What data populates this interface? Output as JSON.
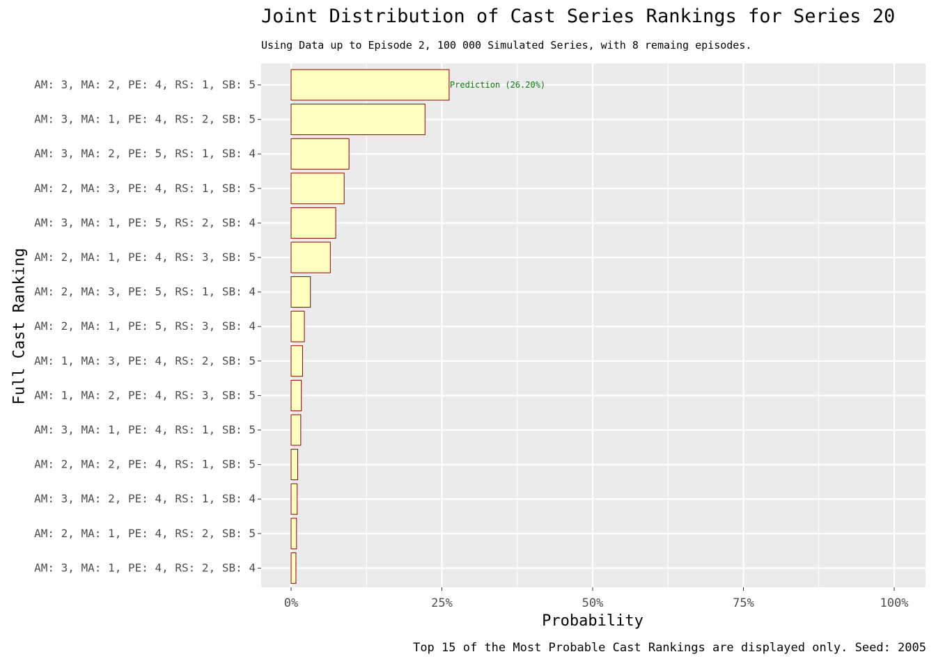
{
  "chart_data": {
    "type": "bar",
    "orientation": "horizontal",
    "title": "Joint Distribution of Cast Series Rankings for Series 20",
    "subtitle": "Using Data up to Episode 2, 100 000 Simulated Series, with 8 remaing episodes.",
    "xlabel": "Probability",
    "ylabel": "Full Cast Ranking",
    "caption": "Top 15 of the Most Probable Cast Rankings are displayed only. Seed: 2005",
    "xlim": [
      0,
      1
    ],
    "x_ticks": [
      0,
      0.25,
      0.5,
      0.75,
      1
    ],
    "x_tick_labels": [
      "0%",
      "25%",
      "50%",
      "75%",
      "100%"
    ],
    "grid": true,
    "categories": [
      "AM: 3, MA: 2, PE: 4, RS: 1, SB: 5",
      "AM: 3, MA: 1, PE: 4, RS: 2, SB: 5",
      "AM: 3, MA: 2, PE: 5, RS: 1, SB: 4",
      "AM: 2, MA: 3, PE: 4, RS: 1, SB: 5",
      "AM: 3, MA: 1, PE: 5, RS: 2, SB: 4",
      "AM: 2, MA: 1, PE: 4, RS: 3, SB: 5",
      "AM: 2, MA: 3, PE: 5, RS: 1, SB: 4",
      "AM: 2, MA: 1, PE: 5, RS: 3, SB: 4",
      "AM: 1, MA: 3, PE: 4, RS: 2, SB: 5",
      "AM: 1, MA: 2, PE: 4, RS: 3, SB: 5",
      "AM: 3, MA: 1, PE: 4, RS: 1, SB: 5",
      "AM: 2, MA: 2, PE: 4, RS: 1, SB: 5",
      "AM: 3, MA: 2, PE: 4, RS: 1, SB: 4",
      "AM: 2, MA: 1, PE: 4, RS: 2, SB: 5",
      "AM: 3, MA: 1, PE: 4, RS: 2, SB: 4"
    ],
    "values": [
      0.262,
      0.222,
      0.096,
      0.088,
      0.074,
      0.065,
      0.032,
      0.022,
      0.019,
      0.017,
      0.016,
      0.011,
      0.01,
      0.009,
      0.008
    ],
    "annotation": {
      "category_index": 0,
      "text": "Prediction (26.20%)"
    },
    "colors": {
      "bar_fill": "#ffffc0",
      "bar_stroke": "#8b0000",
      "panel": "#ebebeb",
      "grid": "#ffffff",
      "annotation": "#0a7a0a"
    }
  }
}
